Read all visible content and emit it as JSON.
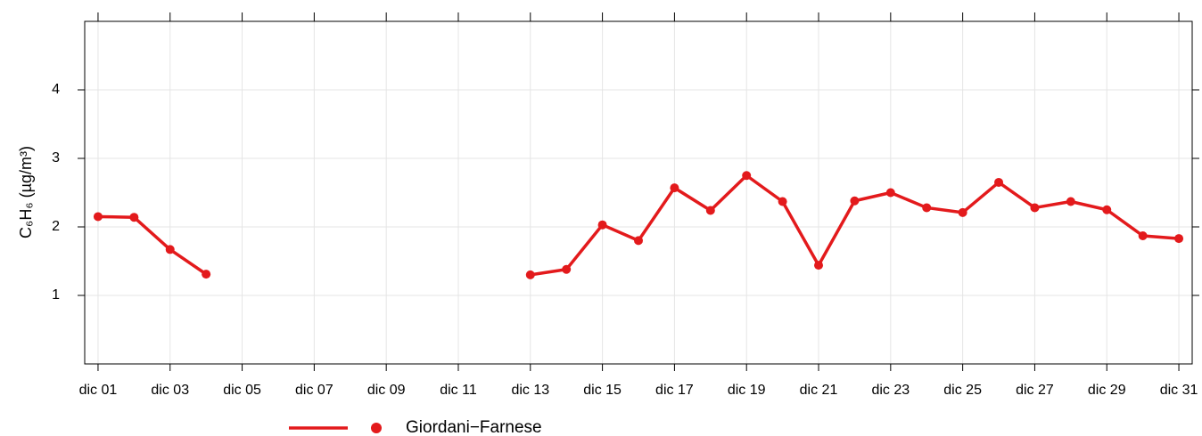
{
  "chart_data": {
    "type": "line",
    "y_label": "C₆H₆ (µg/m³)",
    "x": [
      1,
      2,
      3,
      4,
      5,
      6,
      7,
      8,
      9,
      10,
      11,
      12,
      13,
      14,
      15,
      16,
      17,
      18,
      19,
      20,
      21,
      22,
      23,
      24,
      25,
      26,
      27,
      28,
      29,
      30,
      31
    ],
    "series": [
      {
        "name": "Giordani−Farnese",
        "color": "#e31a1c",
        "values": [
          2.15,
          2.14,
          1.67,
          1.31,
          null,
          null,
          null,
          null,
          null,
          null,
          null,
          null,
          1.3,
          1.38,
          2.03,
          1.8,
          2.57,
          2.24,
          2.75,
          2.37,
          1.44,
          2.38,
          2.5,
          2.28,
          2.21,
          2.65,
          2.28,
          2.37,
          2.25,
          1.87,
          1.83
        ]
      }
    ],
    "xlim": [
      0.63,
      31.37
    ],
    "xticks": [
      {
        "value": 1,
        "label": "dic 01"
      },
      {
        "value": 3,
        "label": "dic 03"
      },
      {
        "value": 5,
        "label": "dic 05"
      },
      {
        "value": 7,
        "label": "dic 07"
      },
      {
        "value": 9,
        "label": "dic 09"
      },
      {
        "value": 11,
        "label": "dic 11"
      },
      {
        "value": 13,
        "label": "dic 13"
      },
      {
        "value": 15,
        "label": "dic 15"
      },
      {
        "value": 17,
        "label": "dic 17"
      },
      {
        "value": 19,
        "label": "dic 19"
      },
      {
        "value": 21,
        "label": "dic 21"
      },
      {
        "value": 23,
        "label": "dic 23"
      },
      {
        "value": 25,
        "label": "dic 25"
      },
      {
        "value": 27,
        "label": "dic 27"
      },
      {
        "value": 29,
        "label": "dic 29"
      },
      {
        "value": 31,
        "label": "dic 31"
      }
    ],
    "ylim": [
      0,
      5
    ],
    "yticks": [
      1,
      2,
      3,
      4
    ],
    "grid": true,
    "legend": "bottom"
  }
}
